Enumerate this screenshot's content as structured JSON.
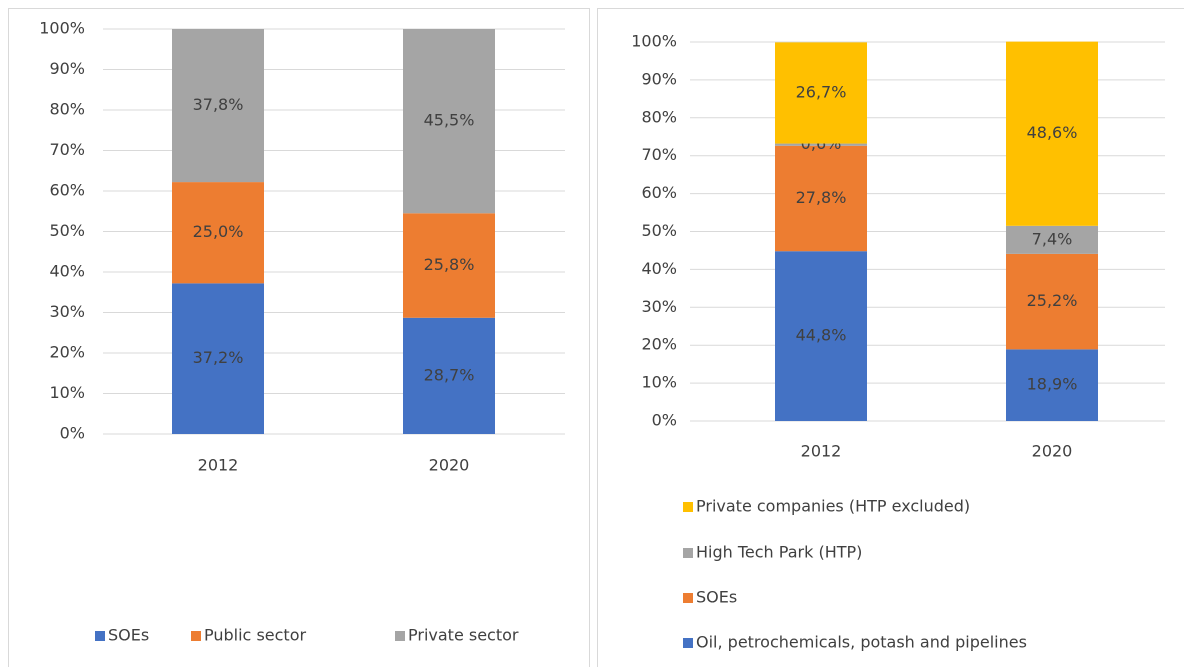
{
  "chart_data": [
    {
      "type": "stacked_bar",
      "categories": [
        "2012",
        "2020"
      ],
      "series": [
        {
          "name": "SOEs",
          "color": "#4472c4",
          "values": [
            37.2,
            28.7
          ],
          "value_labels": [
            "37,2%",
            "28,7%"
          ]
        },
        {
          "name": "Public sector",
          "color": "#ed7d31",
          "values": [
            25.0,
            25.8
          ],
          "value_labels": [
            "25,0%",
            "25,8%"
          ]
        },
        {
          "name": "Private sector",
          "color": "#a5a5a5",
          "values": [
            37.8,
            45.5
          ],
          "value_labels": [
            "37,8%",
            "45,5%"
          ]
        }
      ],
      "ylim": [
        0,
        100
      ],
      "yticks": [
        {
          "value": 0,
          "label": "0%"
        },
        {
          "value": 10,
          "label": "10%"
        },
        {
          "value": 20,
          "label": "20%"
        },
        {
          "value": 30,
          "label": "30%"
        },
        {
          "value": 40,
          "label": "40%"
        },
        {
          "value": 50,
          "label": "50%"
        },
        {
          "value": 60,
          "label": "60%"
        },
        {
          "value": 70,
          "label": "70%"
        },
        {
          "value": 80,
          "label": "80%"
        },
        {
          "value": 90,
          "label": "90%"
        },
        {
          "value": 100,
          "label": "100%"
        }
      ],
      "grid": true,
      "legend": "bottom"
    },
    {
      "type": "stacked_bar",
      "categories": [
        "2012",
        "2020"
      ],
      "series": [
        {
          "name": "Oil, petrochemicals, potash and pipelines",
          "color": "#4472c4",
          "values": [
            44.8,
            18.9
          ],
          "value_labels": [
            "44,8%",
            "18,9%"
          ]
        },
        {
          "name": "SOEs",
          "color": "#ed7d31",
          "values": [
            27.8,
            25.2
          ],
          "value_labels": [
            "27,8%",
            "25,2%"
          ]
        },
        {
          "name": "High Tech Park (HTP)",
          "color": "#a5a5a5",
          "values": [
            0.6,
            7.4
          ],
          "value_labels": [
            "0,6%",
            "7,4%"
          ]
        },
        {
          "name": "Private companies (HTP excluded)",
          "color": "#ffc000",
          "values": [
            26.7,
            48.6
          ],
          "value_labels": [
            "26,7%",
            "48,6%"
          ]
        }
      ],
      "ylim": [
        0,
        100
      ],
      "yticks": [
        {
          "value": 0,
          "label": "0%"
        },
        {
          "value": 10,
          "label": "10%"
        },
        {
          "value": 20,
          "label": "20%"
        },
        {
          "value": 30,
          "label": "30%"
        },
        {
          "value": 40,
          "label": "40%"
        },
        {
          "value": 50,
          "label": "50%"
        },
        {
          "value": 60,
          "label": "60%"
        },
        {
          "value": 70,
          "label": "70%"
        },
        {
          "value": 80,
          "label": "80%"
        },
        {
          "value": 90,
          "label": "90%"
        },
        {
          "value": 100,
          "label": "100%"
        }
      ],
      "grid": true,
      "legend": "bottom"
    }
  ]
}
